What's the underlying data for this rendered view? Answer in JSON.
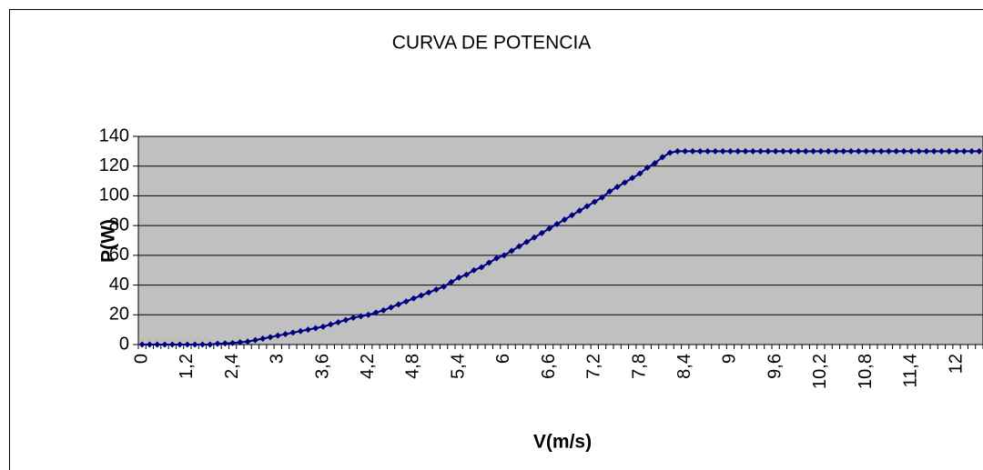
{
  "chart_data": {
    "type": "line",
    "title": "CURVA DE POTENCIA",
    "x_label": "V(m/s)",
    "y_label": "P(W)",
    "categories": [
      "0",
      null,
      null,
      null,
      null,
      null,
      "1,2",
      null,
      null,
      null,
      null,
      null,
      "2,4",
      null,
      null,
      null,
      null,
      null,
      "3",
      null,
      null,
      null,
      null,
      null,
      "3,6",
      null,
      null,
      null,
      null,
      null,
      "4,2",
      null,
      null,
      null,
      null,
      null,
      "4,8",
      null,
      null,
      null,
      null,
      null,
      "5,4",
      null,
      null,
      null,
      null,
      null,
      "6",
      null,
      null,
      null,
      null,
      null,
      "6,6",
      null,
      null,
      null,
      null,
      null,
      "7,2",
      null,
      null,
      null,
      null,
      null,
      "7,8",
      null,
      null,
      null,
      null,
      null,
      "8,4",
      null,
      null,
      null,
      null,
      null,
      "9",
      null,
      null,
      null,
      null,
      null,
      "9,6",
      null,
      null,
      null,
      null,
      null,
      "10,2",
      null,
      null,
      null,
      null,
      null,
      "10,8",
      null,
      null,
      null,
      null,
      null,
      "11,4",
      null,
      null,
      null,
      null,
      null,
      "12",
      null,
      null,
      null
    ],
    "series": [
      {
        "name": "P(W)",
        "color": "#000080",
        "values": [
          0,
          0,
          0,
          0,
          0,
          0,
          0,
          0,
          0,
          0,
          0.5,
          0.8,
          1,
          1.5,
          2,
          3,
          4,
          5,
          6,
          7,
          8,
          9,
          10,
          11,
          12,
          13.5,
          15,
          16.5,
          18,
          19,
          20,
          21.5,
          23,
          25,
          27,
          29,
          31,
          33,
          35,
          37,
          39,
          42,
          45,
          47,
          50,
          52,
          55,
          58,
          60,
          63,
          66,
          69,
          72,
          75,
          78,
          81,
          84,
          87,
          90,
          93,
          96,
          99,
          103,
          106,
          109,
          112,
          115,
          119,
          122,
          126,
          129,
          130,
          130,
          130,
          130,
          130,
          130,
          130,
          130,
          130,
          130,
          130,
          130,
          130,
          130,
          130,
          130,
          130,
          130,
          130,
          130,
          130,
          130,
          130,
          130,
          130,
          130,
          130,
          130,
          130,
          130,
          130,
          130,
          130,
          130,
          130,
          130,
          130,
          130,
          130,
          130,
          130
        ]
      }
    ],
    "ylim": [
      0,
      140
    ],
    "yticks": [
      0,
      20,
      40,
      60,
      80,
      100,
      120,
      140
    ],
    "grid": true,
    "plot_background": "#c0c0c0"
  }
}
